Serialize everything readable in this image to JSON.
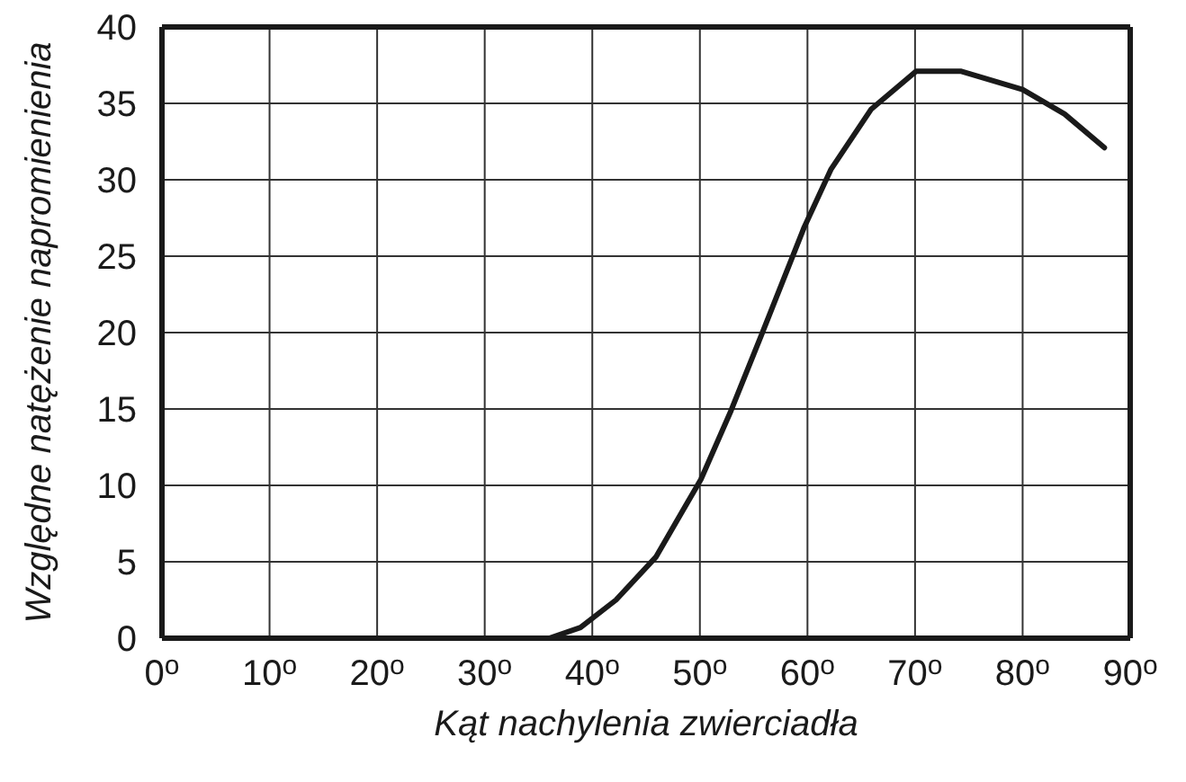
{
  "chart_data": {
    "type": "line",
    "xlabel": "Kąt nachylenia zwierciadła",
    "ylabel": "Względne natężenie napromienienia",
    "x": [
      36,
      38.9,
      42.2,
      45.9,
      50.1,
      52.9,
      55.7,
      59.7,
      62.2,
      65.9,
      70.1,
      74.3,
      80,
      83.9,
      87.6
    ],
    "series": [
      {
        "color": "#1a1a1a",
        "values": [
          0,
          0.7,
          2.5,
          5.3,
          10.4,
          14.9,
          19.8,
          26.9,
          30.7,
          34.6,
          37.1,
          37.1,
          35.9,
          34.3,
          32.1
        ]
      }
    ],
    "xlim": [
      0,
      90
    ],
    "ylim": [
      0,
      40
    ],
    "xticks": [
      {
        "value": 0,
        "label": "0$^{o}$"
      },
      {
        "value": 10,
        "label": "10$^{o}$"
      },
      {
        "value": 20,
        "label": "20$^{o}$"
      },
      {
        "value": 30,
        "label": "30$^{o}$"
      },
      {
        "value": 40,
        "label": "40$^{o}$"
      },
      {
        "value": 50,
        "label": "50$^{o}$"
      },
      {
        "value": 60,
        "label": "60$^{o}$"
      },
      {
        "value": 70,
        "label": "70$^{o}$"
      },
      {
        "value": 80,
        "label": "80$^{o}$"
      },
      {
        "value": 90,
        "label": "90$^{o}$"
      }
    ],
    "yticks": [
      0,
      5,
      10,
      15,
      20,
      25,
      30,
      35,
      40
    ],
    "grid": true,
    "marker": "none",
    "line_style": "solid",
    "legend": false
  }
}
